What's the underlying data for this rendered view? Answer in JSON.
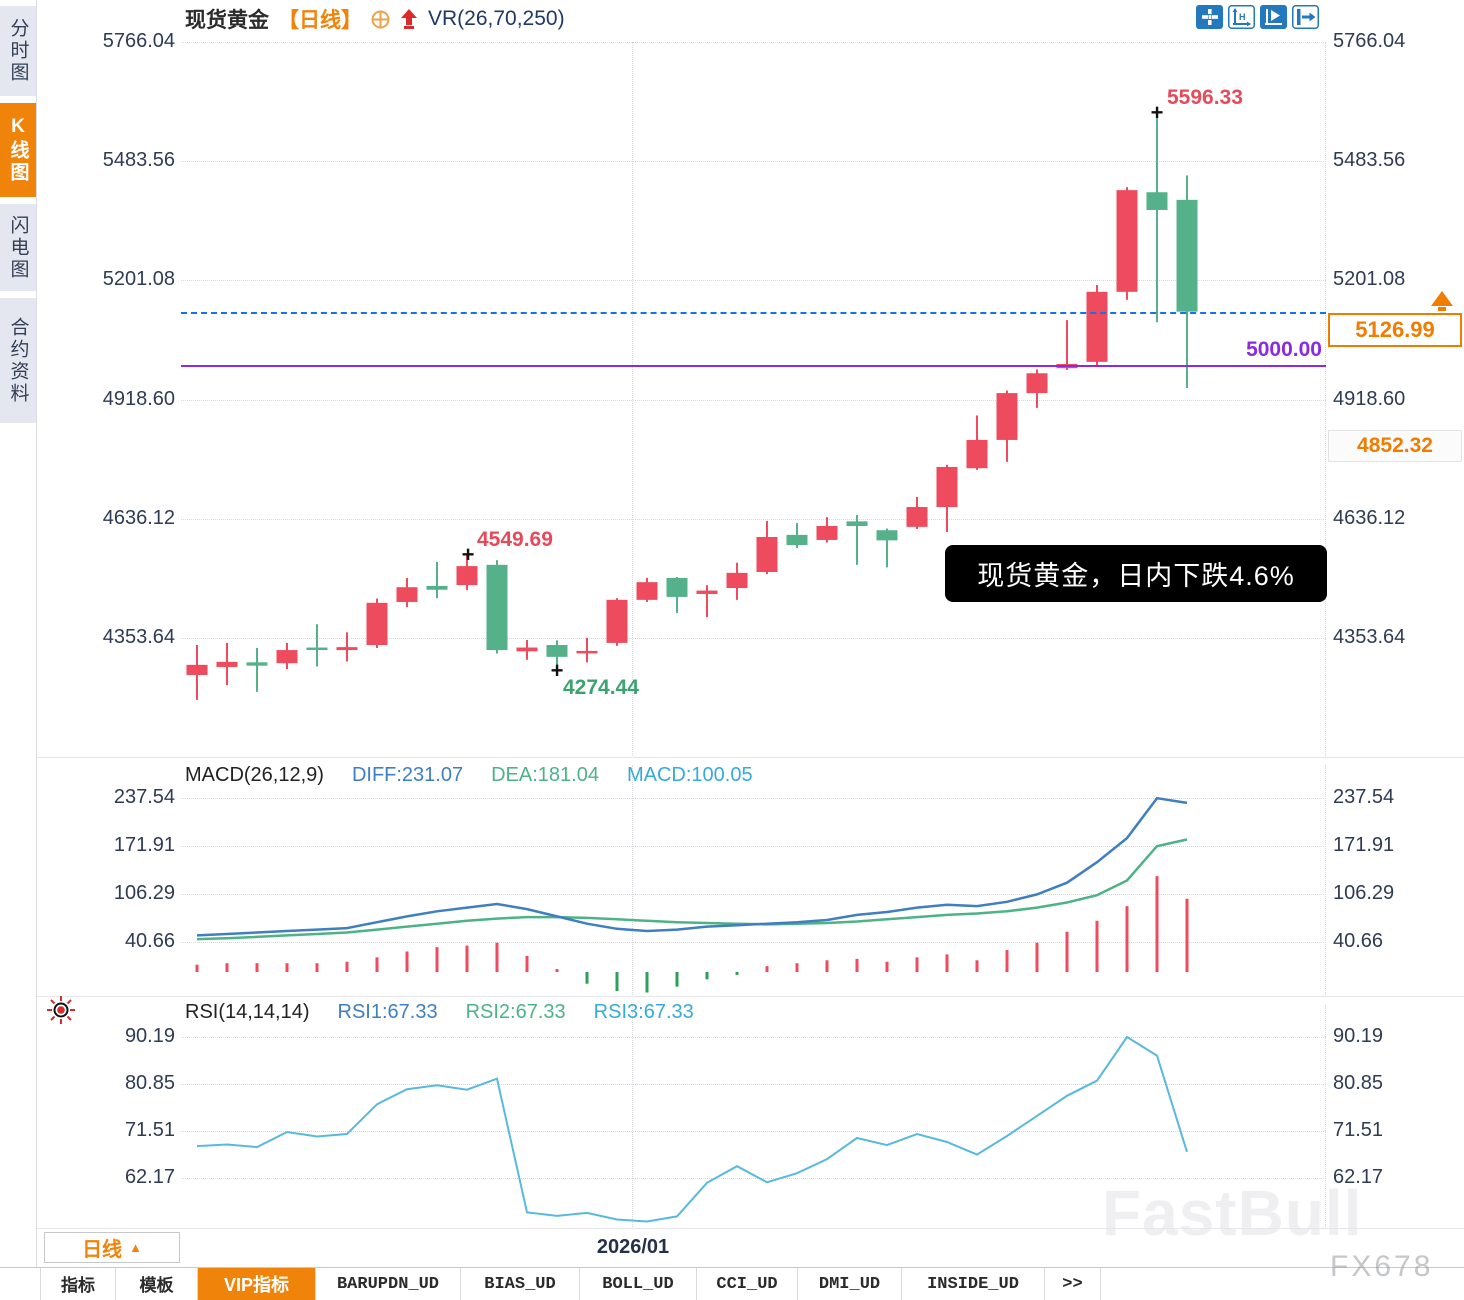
{
  "colors": {
    "up": "#ee4b5e",
    "down": "#54b189",
    "accent": "#f0830a",
    "diff": "#3f7fc1",
    "dea": "#4db386",
    "macd": "#35aadc",
    "rsi_line": "#58b9dd",
    "hline": "#8a2be2",
    "current_line": "#1273eb"
  },
  "sidebar": {
    "tabs": [
      {
        "label": "分时图",
        "active": false
      },
      {
        "label": "K线图",
        "active": true
      },
      {
        "label": "闪电图",
        "active": false
      },
      {
        "label": "合约资料",
        "active": false
      }
    ]
  },
  "header": {
    "symbol": "现货黄金",
    "period": "【日线】",
    "study": "VR(26,70,250)"
  },
  "toolbar": {
    "icons": [
      "pan",
      "axis-range",
      "auto-fit",
      "collapse-panel"
    ]
  },
  "price_axis": {
    "ticks": [
      5766.04,
      5483.56,
      5201.08,
      4918.6,
      4636.12,
      4353.64
    ]
  },
  "annotations": {
    "marker": "+",
    "high_label": "5596.33",
    "swing_high_label": "4549.69",
    "swing_low_label": "4274.44",
    "hline_label": "5000.00",
    "hline_value": 5000.0,
    "current_label": "5126.99",
    "current_value": 5126.99,
    "secondary_label": "4852.32"
  },
  "tooltip": {
    "text": "现货黄金，日内下跌4.6%"
  },
  "macd_panel": {
    "title": "MACD(26,12,9)",
    "diff": "DIFF:231.07",
    "dea": "DEA:181.04",
    "macd": "MACD:100.05",
    "ticks": [
      237.54,
      171.91,
      106.29,
      40.66
    ]
  },
  "rsi_panel": {
    "title": "RSI(14,14,14)",
    "rsi1": "RSI1:67.33",
    "rsi2": "RSI2:67.33",
    "rsi3": "RSI3:67.33",
    "ticks": [
      90.19,
      80.85,
      71.51,
      62.17
    ]
  },
  "date_axis": {
    "period": "日线",
    "caret": "▲",
    "date": "2026/01"
  },
  "bottom_tabs": [
    {
      "label": "指标",
      "active": false
    },
    {
      "label": "模板",
      "active": false
    },
    {
      "label": "VIP指标",
      "active": true
    },
    {
      "label": "BARUPDN_UD",
      "active": false
    },
    {
      "label": "BIAS_UD",
      "active": false
    },
    {
      "label": "BOLL_UD",
      "active": false
    },
    {
      "label": "CCI_UD",
      "active": false
    },
    {
      "label": "DMI_UD",
      "active": false
    },
    {
      "label": "INSIDE_UD",
      "active": false
    },
    {
      "label": ">>",
      "active": false
    }
  ],
  "watermark": {
    "brand": "FastBull",
    "sub": "FX678"
  },
  "chart_data": {
    "type": "candlestick",
    "title": "现货黄金 日线",
    "ylim": [
      4200,
      5766.04
    ],
    "price_ticks": [
      5766.04,
      5483.56,
      5201.08,
      4918.6,
      4636.12,
      4353.64
    ],
    "candles_ohlc": [
      [
        4266,
        4337,
        4207,
        4290
      ],
      [
        4285,
        4342,
        4242,
        4297
      ],
      [
        4296,
        4330,
        4226,
        4288
      ],
      [
        4294,
        4342,
        4280,
        4325
      ],
      [
        4331,
        4386,
        4286,
        4327
      ],
      [
        4325,
        4367,
        4298,
        4332
      ],
      [
        4337,
        4447,
        4330,
        4437
      ],
      [
        4439,
        4496,
        4427,
        4474
      ],
      [
        4477,
        4534,
        4448,
        4468
      ],
      [
        4479,
        4549.69,
        4467,
        4524
      ],
      [
        4527,
        4538,
        4317,
        4325
      ],
      [
        4322,
        4349,
        4302,
        4331
      ],
      [
        4337,
        4348,
        4274.44,
        4309
      ],
      [
        4318,
        4354,
        4296,
        4323
      ],
      [
        4342,
        4448,
        4335,
        4444
      ],
      [
        4444,
        4496,
        4439,
        4486
      ],
      [
        4496,
        4498,
        4413,
        4451
      ],
      [
        4458,
        4479,
        4403,
        4466
      ],
      [
        4472,
        4532,
        4444,
        4508
      ],
      [
        4510,
        4631,
        4505,
        4593
      ],
      [
        4598,
        4626,
        4567,
        4574
      ],
      [
        4586,
        4640,
        4580,
        4619
      ],
      [
        4630,
        4645,
        4527,
        4619
      ],
      [
        4609,
        4613,
        4521,
        4585
      ],
      [
        4617,
        4688,
        4612,
        4664
      ],
      [
        4664,
        4764,
        4605,
        4759
      ],
      [
        4756,
        4881,
        4752,
        4823
      ],
      [
        4823,
        4940,
        4771,
        4934
      ],
      [
        4934,
        4990,
        4899,
        4981
      ],
      [
        4993,
        5107,
        4989,
        5003
      ],
      [
        5008,
        5190,
        4998,
        5174
      ],
      [
        5174,
        5422,
        5155,
        5415
      ],
      [
        5410,
        5596.33,
        5102,
        5368
      ],
      [
        5392,
        5450,
        4946,
        5126.99
      ]
    ],
    "macd": {
      "ticks": [
        237.54,
        171.91,
        106.29,
        40.66
      ],
      "diff": [
        50,
        52,
        54,
        56,
        58,
        60,
        68,
        76,
        83,
        88,
        93,
        86,
        76,
        66,
        59,
        56,
        58,
        62,
        64,
        66,
        68,
        71,
        78,
        82,
        88,
        92,
        90,
        96,
        106,
        122,
        150,
        183,
        237.54,
        231.07
      ],
      "dea": [
        45,
        46,
        48,
        50,
        52,
        54,
        58,
        62,
        66,
        70,
        73,
        75,
        75,
        74,
        72,
        70,
        68,
        67,
        66,
        65,
        66,
        67,
        69,
        72,
        75,
        78,
        80,
        83,
        88,
        95,
        105,
        125,
        172,
        181.04
      ],
      "hist": [
        10,
        12,
        12,
        12,
        12,
        14,
        20,
        28,
        34,
        36,
        40,
        22,
        4,
        -16,
        -26,
        -28,
        -20,
        -10,
        -4,
        8,
        12,
        16,
        18,
        14,
        20,
        24,
        16,
        30,
        40,
        55,
        70,
        90,
        131,
        100.05
      ]
    },
    "rsi": {
      "ticks": [
        90.19,
        80.85,
        71.51,
        62.17
      ],
      "values": [
        68.5,
        68.8,
        68.3,
        71.3,
        70.4,
        70.9,
        76.8,
        79.8,
        80.6,
        79.7,
        81.9,
        55.3,
        54.6,
        55.2,
        53.9,
        53.5,
        54.5,
        61.2,
        64.5,
        61.3,
        63.1,
        65.9,
        70.1,
        68.7,
        70.9,
        69.3,
        66.8,
        70.5,
        74.5,
        78.5,
        81.5,
        90.19,
        86.5,
        67.33
      ]
    }
  }
}
